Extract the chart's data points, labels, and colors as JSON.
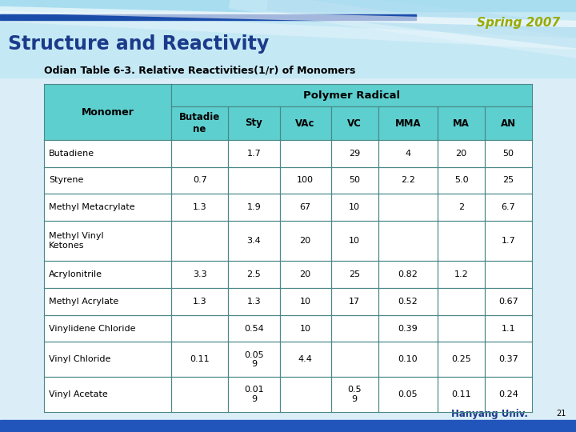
{
  "title": "Structure and Reactivity",
  "spring_label": "Spring 2007",
  "subtitle": "Odian Table 6-3. Relative Reactivities(1/r) of Monomers",
  "col_headers": [
    "Monomer",
    "Butadie\nne",
    "Sty",
    "VAc",
    "VC",
    "MMA",
    "MA",
    "AN"
  ],
  "rows": [
    [
      "Butadiene",
      "",
      "1.7",
      "",
      "29",
      "4",
      "20",
      "50"
    ],
    [
      "Styrene",
      "0.7",
      "",
      "100",
      "50",
      "2.2",
      "5.0",
      "25"
    ],
    [
      "Methyl Metacrylate",
      "1.3",
      "1.9",
      "67",
      "10",
      "",
      "2",
      "6.7"
    ],
    [
      "Methyl Vinyl\nKetones",
      "",
      "3.4",
      "20",
      "10",
      "",
      "",
      "1.7"
    ],
    [
      "Acrylonitrile",
      "3.3",
      "2.5",
      "20",
      "25",
      "0.82",
      "1.2",
      ""
    ],
    [
      "Methyl Acrylate",
      "1.3",
      "1.3",
      "10",
      "17",
      "0.52",
      "",
      "0.67"
    ],
    [
      "Vinylidene Chloride",
      "",
      "0.54",
      "10",
      "",
      "0.39",
      "",
      "1.1"
    ],
    [
      "Vinyl Chloride",
      "0.11",
      "0.05\n9",
      "4.4",
      "",
      "0.10",
      "0.25",
      "0.37"
    ],
    [
      "Vinyl Acetate",
      "",
      "0.01\n9",
      "",
      "0.5\n9",
      "0.05",
      "0.11",
      "0.24"
    ]
  ],
  "header_bg": "#5ECFCF",
  "border_color": "#4a9a7a",
  "title_color": "#1a3a8a",
  "spring_color": "#99aa00",
  "subtitle_color": "#000000",
  "slide_bg": "#dbeef8",
  "header_area_bg": "#c5e8f5",
  "blue_bar_color": "#1a4caa",
  "bottom_bar_color": "#2255bb",
  "hanyang_color": "#1a3a8a"
}
